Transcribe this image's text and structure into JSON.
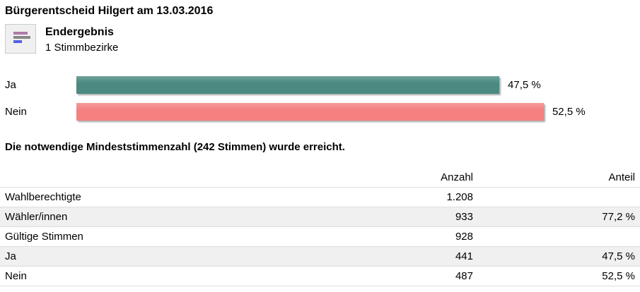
{
  "title": "Bürgerentscheid Hilgert am 13.03.2016",
  "result_icon": "bar-chart-icon",
  "status": "Endergebnis",
  "districts": "1 Stimmbezirke",
  "bars": [
    {
      "label": "Ja",
      "value": 47.5,
      "value_label": "47,5 %",
      "color": "#4a8a80"
    },
    {
      "label": "Nein",
      "value": 52.5,
      "value_label": "52,5 %",
      "color": "#f58080"
    }
  ],
  "note": "Die notwendige Mindeststimmenzahl (242 Stimmen) wurde erreicht.",
  "table": {
    "headers": [
      "",
      "Anzahl",
      "Anteil"
    ],
    "rows": [
      [
        "Wahlberechtigte",
        "1.208",
        ""
      ],
      [
        "Wähler/innen",
        "933",
        "77,2 %"
      ],
      [
        "Gültige Stimmen",
        "928",
        ""
      ],
      [
        "Ja",
        "441",
        "47,5 %"
      ],
      [
        "Nein",
        "487",
        "52,5 %"
      ]
    ]
  }
}
